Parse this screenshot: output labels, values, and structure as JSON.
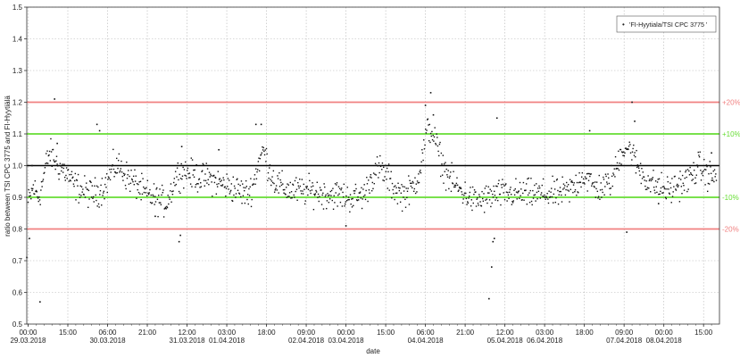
{
  "chart_data": {
    "type": "scatter",
    "xlabel": "date",
    "ylabel": "ratio between TSI CPC 3775 and FI-Hyytiälä",
    "ylim": [
      0.5,
      1.5
    ],
    "yticks": [
      "0.5",
      "0.6",
      "0.7",
      "0.8",
      "0.9",
      "1.0",
      "1.1",
      "1.2",
      "1.3",
      "1.4",
      "1.5"
    ],
    "xlim": [
      "2018-03-29T00:00",
      "2018-04-08T21:00"
    ],
    "grid": true,
    "legend": {
      "position": "top-right",
      "entries": [
        {
          "marker": "•",
          "label": "'FI-Hyytiala/TSI CPC 3775 '"
        }
      ]
    },
    "x_ticks": [
      {
        "t": 0,
        "time": "00:00",
        "date": "29.03.2018"
      },
      {
        "t": 15,
        "time": "15:00",
        "date": ""
      },
      {
        "t": 30,
        "time": "06:00",
        "date": "30.03.2018"
      },
      {
        "t": 45,
        "time": "21:00",
        "date": ""
      },
      {
        "t": 60,
        "time": "12:00",
        "date": "31.03.2018"
      },
      {
        "t": 75,
        "time": "03:00",
        "date": "01.04.2018"
      },
      {
        "t": 90,
        "time": "18:00",
        "date": ""
      },
      {
        "t": 105,
        "time": "09:00",
        "date": "02.04.2018"
      },
      {
        "t": 120,
        "time": "00:00",
        "date": "03.04.2018"
      },
      {
        "t": 135,
        "time": "15:00",
        "date": ""
      },
      {
        "t": 150,
        "time": "06:00",
        "date": "04.04.2018"
      },
      {
        "t": 165,
        "time": "21:00",
        "date": ""
      },
      {
        "t": 180,
        "time": "12:00",
        "date": "05.04.2018"
      },
      {
        "t": 195,
        "time": "03:00",
        "date": "06.04.2018"
      },
      {
        "t": 210,
        "time": "18:00",
        "date": ""
      },
      {
        "t": 225,
        "time": "09:00",
        "date": "07.04.2018"
      },
      {
        "t": 240,
        "time": "00:00",
        "date": "08.04.2018"
      },
      {
        "t": 255,
        "time": "15:00",
        "date": ""
      }
    ],
    "reference_lines": [
      {
        "y": 1.2,
        "label": "+20%",
        "color": "#f08080"
      },
      {
        "y": 1.1,
        "label": "+10%",
        "color": "#66dd33"
      },
      {
        "y": 1.0,
        "label": "",
        "color": "#000000"
      },
      {
        "y": 0.9,
        "label": "-10%",
        "color": "#66dd33"
      },
      {
        "y": 0.8,
        "label": "-20%",
        "color": "#f08080"
      }
    ],
    "trend": [
      [
        0,
        0.88
      ],
      [
        2,
        0.93
      ],
      [
        4,
        0.9
      ],
      [
        5,
        0.93
      ],
      [
        7,
        1.01
      ],
      [
        8,
        1.04
      ],
      [
        9,
        1.03
      ],
      [
        10,
        1.02
      ],
      [
        11,
        1.0
      ],
      [
        13,
        0.99
      ],
      [
        15,
        0.97
      ],
      [
        17,
        0.94
      ],
      [
        19,
        0.93
      ],
      [
        21,
        0.92
      ],
      [
        24,
        0.91
      ],
      [
        27,
        0.92
      ],
      [
        30,
        0.95
      ],
      [
        32,
        0.99
      ],
      [
        34,
        1.0
      ],
      [
        36,
        0.98
      ],
      [
        38,
        0.96
      ],
      [
        41,
        0.94
      ],
      [
        44,
        0.91
      ],
      [
        47,
        0.9
      ],
      [
        50,
        0.89
      ],
      [
        52,
        0.88
      ],
      [
        54,
        0.92
      ],
      [
        56,
        0.97
      ],
      [
        58,
        0.98
      ],
      [
        60,
        0.98
      ],
      [
        62,
        0.97
      ],
      [
        65,
        0.96
      ],
      [
        68,
        0.96
      ],
      [
        71,
        0.95
      ],
      [
        74,
        0.94
      ],
      [
        77,
        0.93
      ],
      [
        80,
        0.92
      ],
      [
        83,
        0.91
      ],
      [
        85,
        0.94
      ],
      [
        87,
        1.01
      ],
      [
        89,
        1.05
      ],
      [
        91,
        0.99
      ],
      [
        93,
        0.95
      ],
      [
        96,
        0.93
      ],
      [
        100,
        0.92
      ],
      [
        104,
        0.92
      ],
      [
        108,
        0.92
      ],
      [
        112,
        0.91
      ],
      [
        116,
        0.91
      ],
      [
        120,
        0.9
      ],
      [
        124,
        0.9
      ],
      [
        127,
        0.91
      ],
      [
        129,
        0.95
      ],
      [
        131,
        0.98
      ],
      [
        133,
        0.99
      ],
      [
        135,
        0.97
      ],
      [
        138,
        0.93
      ],
      [
        141,
        0.91
      ],
      [
        144,
        0.92
      ],
      [
        146,
        0.94
      ],
      [
        148,
        0.99
      ],
      [
        150,
        1.08
      ],
      [
        151,
        1.12
      ],
      [
        153,
        1.1
      ],
      [
        155,
        1.04
      ],
      [
        157,
        0.99
      ],
      [
        159,
        0.96
      ],
      [
        162,
        0.93
      ],
      [
        165,
        0.91
      ],
      [
        168,
        0.89
      ],
      [
        171,
        0.89
      ],
      [
        174,
        0.9
      ],
      [
        177,
        0.91
      ],
      [
        180,
        0.91
      ],
      [
        184,
        0.91
      ],
      [
        188,
        0.91
      ],
      [
        192,
        0.91
      ],
      [
        196,
        0.91
      ],
      [
        200,
        0.91
      ],
      [
        204,
        0.92
      ],
      [
        207,
        0.94
      ],
      [
        209,
        0.97
      ],
      [
        211,
        0.96
      ],
      [
        214,
        0.93
      ],
      [
        217,
        0.93
      ],
      [
        220,
        0.95
      ],
      [
        222,
        0.99
      ],
      [
        224,
        1.05
      ],
      [
        226,
        1.06
      ],
      [
        228,
        1.04
      ],
      [
        230,
        1.0
      ],
      [
        233,
        0.96
      ],
      [
        236,
        0.94
      ],
      [
        239,
        0.93
      ],
      [
        242,
        0.92
      ],
      [
        245,
        0.94
      ],
      [
        248,
        0.95
      ],
      [
        251,
        0.97
      ],
      [
        253,
        1.0
      ],
      [
        255,
        0.98
      ],
      [
        257,
        0.97
      ],
      [
        260,
        0.96
      ]
    ],
    "outliers": [
      [
        -0.5,
        0.71
      ],
      [
        0.5,
        0.77
      ],
      [
        1.5,
        1.0
      ],
      [
        4.5,
        0.57
      ],
      [
        10,
        1.21
      ],
      [
        11,
        1.07
      ],
      [
        26,
        1.13
      ],
      [
        27,
        1.11
      ],
      [
        48,
        0.84
      ],
      [
        57,
        0.76
      ],
      [
        57.5,
        0.78
      ],
      [
        58,
        1.06
      ],
      [
        86,
        1.13
      ],
      [
        88,
        1.13
      ],
      [
        72,
        1.05
      ],
      [
        120,
        0.81
      ],
      [
        150,
        1.19
      ],
      [
        152,
        1.23
      ],
      [
        153,
        1.16
      ],
      [
        174,
        0.58
      ],
      [
        175,
        0.68
      ],
      [
        175.5,
        0.76
      ],
      [
        176,
        0.77
      ],
      [
        177,
        1.15
      ],
      [
        226,
        0.79
      ],
      [
        228,
        1.2
      ],
      [
        229,
        1.14
      ],
      [
        212,
        1.11
      ],
      [
        238,
        0.88
      ],
      [
        258,
        1.04
      ]
    ]
  }
}
